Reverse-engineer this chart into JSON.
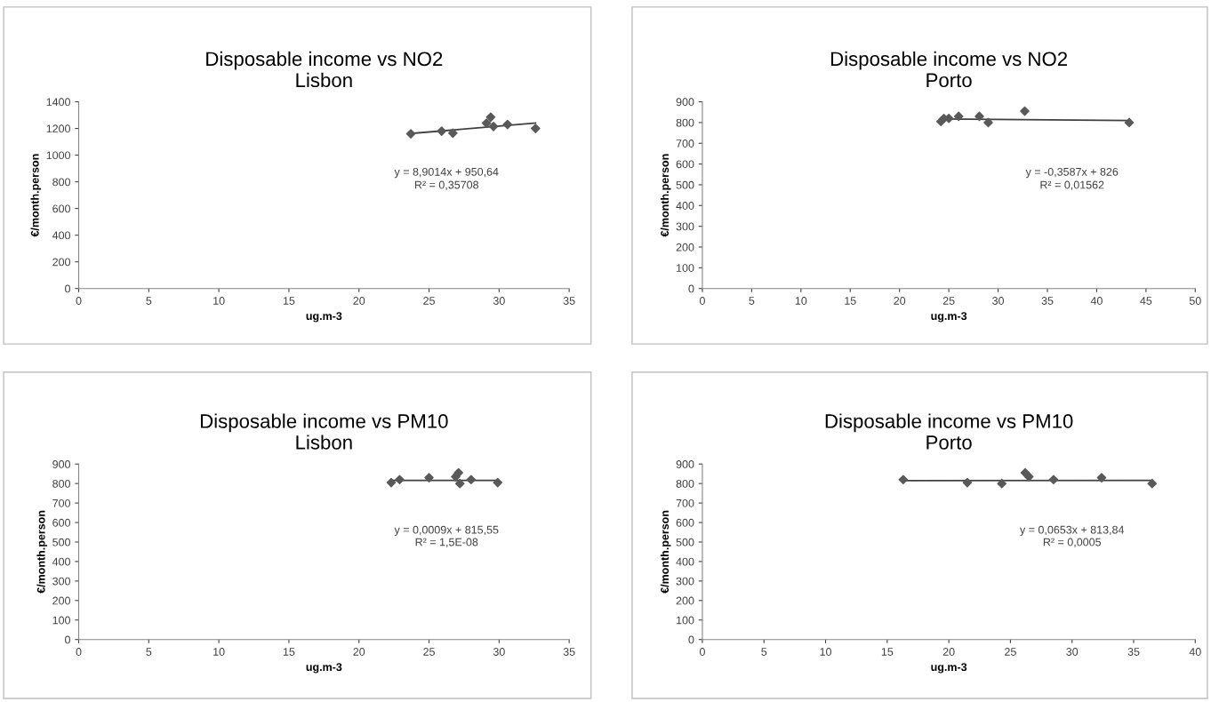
{
  "chart_data": [
    {
      "type": "scatter",
      "title": "Disposable income vs NO2\nLisbon",
      "xlabel": "ug.m-3",
      "ylabel": "€/month.person",
      "grid": false,
      "legend": false,
      "xlim": [
        0,
        35
      ],
      "xticks": [
        0,
        5,
        10,
        15,
        20,
        25,
        30,
        35
      ],
      "ylim": [
        0,
        1400
      ],
      "yticks": [
        0,
        200,
        400,
        600,
        800,
        1000,
        1200,
        1400
      ],
      "annotations": [
        "y = 8,9014x + 950,64",
        "R² = 0,35708"
      ],
      "series": [
        {
          "marker": "diamond",
          "color": "#595959",
          "x": [
            23.7,
            25.9,
            26.7,
            29.1,
            29.4,
            29.6,
            30.6,
            32.6
          ],
          "values": [
            1160,
            1180,
            1165,
            1240,
            1285,
            1215,
            1230,
            1200
          ]
        },
        {
          "type": "line",
          "color": "#404040",
          "x": [
            23.7,
            32.6
          ],
          "values": [
            1162,
            1241
          ]
        }
      ]
    },
    {
      "type": "scatter",
      "title": "Disposable income vs NO2\nPorto",
      "xlabel": "ug.m-3",
      "ylabel": "€/month.person",
      "grid": false,
      "legend": false,
      "xlim": [
        0,
        50
      ],
      "xticks": [
        0,
        5,
        10,
        15,
        20,
        25,
        30,
        35,
        40,
        45,
        50
      ],
      "ylim": [
        0,
        900
      ],
      "yticks": [
        0,
        100,
        200,
        300,
        400,
        500,
        600,
        700,
        800,
        900
      ],
      "annotations": [
        "y = -0,3587x + 826",
        "R² = 0,01562"
      ],
      "series": [
        {
          "marker": "diamond",
          "color": "#595959",
          "x": [
            24.2,
            24.5,
            25.0,
            26.0,
            28.1,
            29.0,
            32.7,
            43.3
          ],
          "values": [
            805,
            820,
            820,
            830,
            830,
            800,
            855,
            800
          ]
        },
        {
          "type": "line",
          "color": "#404040",
          "x": [
            24.2,
            43.3
          ],
          "values": [
            817,
            810
          ]
        }
      ]
    },
    {
      "type": "scatter",
      "title": "Disposable income vs PM10\nLisbon",
      "xlabel": "ug.m-3",
      "ylabel": "€/month.person",
      "grid": false,
      "legend": false,
      "xlim": [
        0,
        35
      ],
      "xticks": [
        0,
        5,
        10,
        15,
        20,
        25,
        30,
        35
      ],
      "ylim": [
        0,
        900
      ],
      "yticks": [
        0,
        100,
        200,
        300,
        400,
        500,
        600,
        700,
        800,
        900
      ],
      "annotations": [
        "y = 0,0009x + 815,55",
        "R² = 1,5E-08"
      ],
      "series": [
        {
          "marker": "diamond",
          "color": "#595959",
          "x": [
            22.3,
            22.9,
            25.0,
            26.9,
            27.1,
            27.2,
            28.0,
            29.9
          ],
          "values": [
            805,
            820,
            830,
            835,
            855,
            800,
            820,
            805
          ]
        },
        {
          "type": "line",
          "color": "#404040",
          "x": [
            22.3,
            29.9
          ],
          "values": [
            816,
            816
          ]
        }
      ]
    },
    {
      "type": "scatter",
      "title": "Disposable income vs PM10\nPorto",
      "xlabel": "ug.m-3",
      "ylabel": "€/month.person",
      "grid": false,
      "legend": false,
      "xlim": [
        0,
        40
      ],
      "xticks": [
        0,
        5,
        10,
        15,
        20,
        25,
        30,
        35,
        40
      ],
      "ylim": [
        0,
        900
      ],
      "yticks": [
        0,
        100,
        200,
        300,
        400,
        500,
        600,
        700,
        800,
        900
      ],
      "annotations": [
        "y = 0,0653x + 813,84",
        "R² = 0,0005"
      ],
      "series": [
        {
          "marker": "diamond",
          "color": "#595959",
          "x": [
            16.3,
            21.5,
            24.3,
            26.2,
            26.5,
            28.5,
            32.4,
            36.5
          ],
          "values": [
            820,
            805,
            800,
            855,
            835,
            820,
            830,
            800
          ]
        },
        {
          "type": "line",
          "color": "#404040",
          "x": [
            16.3,
            36.5
          ],
          "values": [
            815,
            816
          ]
        }
      ]
    }
  ]
}
